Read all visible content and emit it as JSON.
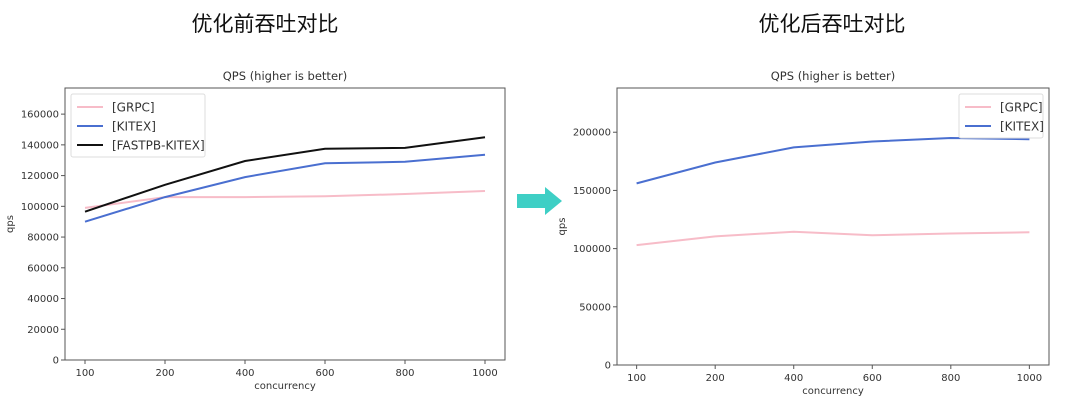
{
  "headings": {
    "before": "优化前吞吐对比",
    "after": "优化后吞吐对比"
  },
  "arrow": {
    "icon": "arrow-right-icon",
    "color": "#3ecfc5"
  },
  "chart_data": [
    {
      "type": "line",
      "title": "QPS (higher is better)",
      "xlabel": "concurrency",
      "ylabel": "qps",
      "categories": [
        "100",
        "200",
        "400",
        "600",
        "800",
        "1000"
      ],
      "ylim": [
        0,
        177000
      ],
      "yticks": [
        0,
        20000,
        40000,
        60000,
        80000,
        100000,
        120000,
        140000,
        160000
      ],
      "legend": "top-left",
      "grid": false,
      "series": [
        {
          "name": "[GRPC]",
          "color": "#f7bcc8",
          "values": [
            99000,
            106000,
            106000,
            106500,
            108000,
            110000
          ]
        },
        {
          "name": "[KITEX]",
          "color": "#4a6fd0",
          "values": [
            90000,
            106000,
            119000,
            128000,
            129000,
            133500
          ]
        },
        {
          "name": "[FASTPB-KITEX]",
          "color": "#111111",
          "values": [
            96500,
            114000,
            129500,
            137500,
            138000,
            145000
          ]
        }
      ]
    },
    {
      "type": "line",
      "title": "QPS (higher is better)",
      "xlabel": "concurrency",
      "ylabel": "qps",
      "categories": [
        "100",
        "200",
        "400",
        "600",
        "800",
        "1000"
      ],
      "ylim": [
        0,
        238000
      ],
      "yticks": [
        0,
        50000,
        100000,
        150000,
        200000
      ],
      "legend": "top-right",
      "grid": false,
      "series": [
        {
          "name": "[GRPC]",
          "color": "#f7bcc8",
          "values": [
            103000,
            110500,
            114500,
            111500,
            113000,
            114000
          ]
        },
        {
          "name": "[KITEX]",
          "color": "#4a6fd0",
          "values": [
            156000,
            174000,
            187000,
            192000,
            195000,
            194000
          ]
        }
      ]
    }
  ]
}
